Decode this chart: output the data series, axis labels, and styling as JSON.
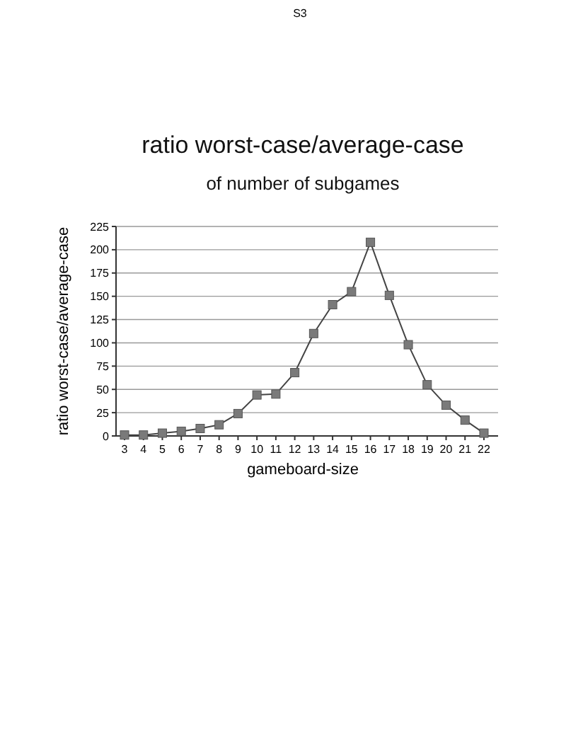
{
  "chart_data": {
    "type": "line",
    "title": "ratio worst-case/average-case",
    "subtitle": "of number of subgames",
    "xlabel": "gameboard-size",
    "ylabel": "ratio worst-case/average-case",
    "annotations": [
      "S3"
    ],
    "categories": [
      "3",
      "4",
      "5",
      "6",
      "7",
      "8",
      "9",
      "10",
      "11",
      "12",
      "13",
      "14",
      "15",
      "16",
      "17",
      "18",
      "19",
      "20",
      "21",
      "22"
    ],
    "series": [
      {
        "color": "#7a7a7a",
        "values": [
          1,
          1,
          3,
          5,
          8,
          12,
          24,
          44,
          45,
          68,
          110,
          141,
          155,
          208,
          151,
          98,
          55,
          33,
          17,
          3
        ]
      }
    ],
    "ylim": [
      0,
      225
    ],
    "yticks": [
      0,
      25,
      50,
      75,
      100,
      125,
      150,
      175,
      200,
      225
    ],
    "grid": "y",
    "marker": "square",
    "line_style": "solid"
  }
}
